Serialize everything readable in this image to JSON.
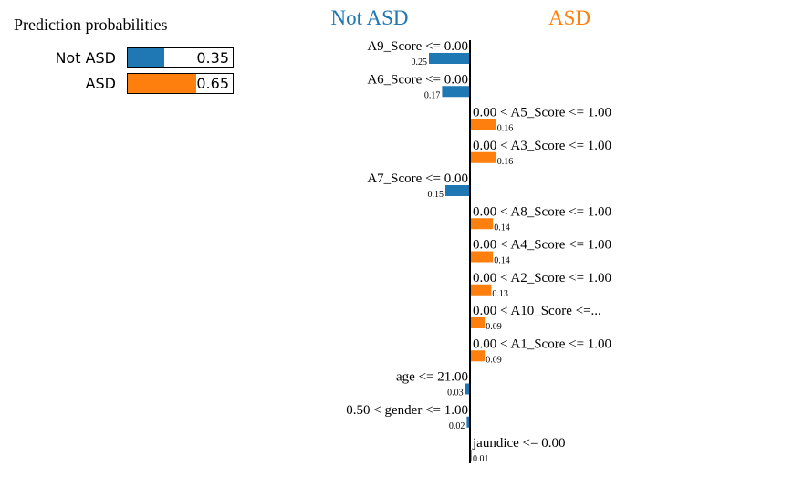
{
  "probabilities": {
    "title": "Prediction probabilities",
    "items": [
      {
        "label": "Not ASD",
        "value": 0.35,
        "value_text": "0.35",
        "color": "#1f77b4"
      },
      {
        "label": "ASD",
        "value": 0.65,
        "value_text": "0.65",
        "color": "#ff7f0e"
      }
    ]
  },
  "explanation": {
    "left_class": "Not ASD",
    "right_class": "ASD",
    "left_color": "#1f77b4",
    "right_color": "#ff7f0e"
  },
  "chart_data": {
    "type": "bar",
    "orientation": "horizontal",
    "categories": [
      "A9_Score <= 0.00",
      "A6_Score <= 0.00",
      "0.00 < A5_Score <= 1.00",
      "0.00 < A3_Score <= 1.00",
      "A7_Score <= 0.00",
      "0.00 < A8_Score <= 1.00",
      "0.00 < A4_Score <= 1.00",
      "0.00 < A2_Score <= 1.00",
      "0.00 < A10_Score <=...",
      "0.00 < A1_Score <= 1.00",
      "age <= 21.00",
      "0.50 < gender <= 1.00",
      "jaundice <= 0.00"
    ],
    "values": [
      -0.25,
      -0.17,
      0.16,
      0.16,
      -0.15,
      0.14,
      0.14,
      0.13,
      0.09,
      0.09,
      -0.03,
      -0.02,
      0.01
    ],
    "value_labels": [
      "0.25",
      "0.17",
      "0.16",
      "0.16",
      "0.15",
      "0.14",
      "0.14",
      "0.13",
      "0.09",
      "0.09",
      "0.03",
      "0.02",
      "0.01"
    ],
    "series": [
      {
        "name": "Not ASD",
        "color": "#1f77b4"
      },
      {
        "name": "ASD",
        "color": "#ff7f0e"
      }
    ]
  }
}
